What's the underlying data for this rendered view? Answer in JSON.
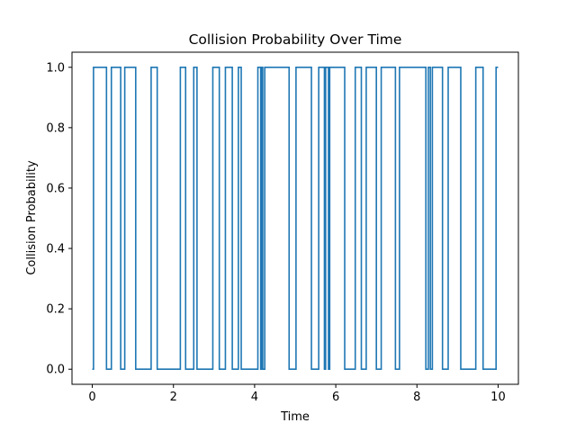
{
  "chart_data": {
    "type": "line",
    "title": "Collision Probability Over Time",
    "xlabel": "Time",
    "ylabel": "Collision Probability",
    "xlim": [
      -0.5,
      10.5
    ],
    "ylim": [
      -0.05,
      1.05
    ],
    "x_ticks": [
      0,
      2,
      4,
      6,
      8,
      10
    ],
    "y_ticks": [
      0.0,
      0.2,
      0.4,
      0.6,
      0.8,
      1.0
    ],
    "x_tick_labels": [
      "0",
      "2",
      "4",
      "6",
      "8",
      "10"
    ],
    "y_tick_labels": [
      "0.0",
      "0.2",
      "0.4",
      "0.6",
      "0.8",
      "1.0"
    ],
    "grid": false,
    "series": [
      {
        "color": "#1f77b4",
        "step": true,
        "x": [
          0.0,
          0.03,
          0.35,
          0.47,
          0.7,
          0.8,
          1.07,
          1.45,
          1.6,
          2.17,
          2.3,
          2.5,
          2.58,
          2.97,
          3.13,
          3.28,
          3.45,
          3.6,
          3.67,
          4.08,
          4.15,
          4.17,
          4.2,
          4.25,
          4.85,
          5.02,
          5.4,
          5.58,
          5.72,
          5.75,
          5.82,
          5.85,
          6.22,
          6.48,
          6.63,
          6.75,
          7.0,
          7.12,
          7.47,
          7.57,
          8.22,
          8.28,
          8.33,
          8.38,
          8.63,
          8.77,
          9.08,
          9.45,
          9.63,
          9.95,
          10.0
        ],
        "values": [
          0,
          1,
          0,
          1,
          0,
          1,
          0,
          1,
          0,
          1,
          0,
          1,
          0,
          1,
          0,
          1,
          0,
          1,
          0,
          1,
          0,
          1,
          0,
          1,
          0,
          1,
          0,
          1,
          0,
          1,
          0,
          1,
          0,
          1,
          0,
          1,
          0,
          1,
          0,
          1,
          0,
          1,
          0,
          1,
          0,
          1,
          0,
          1,
          0,
          1,
          1
        ]
      }
    ]
  }
}
